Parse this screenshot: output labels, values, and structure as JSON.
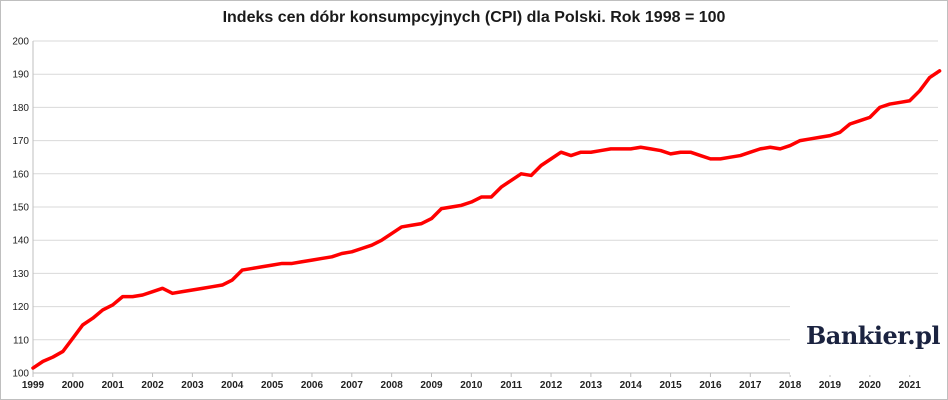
{
  "chart_data": {
    "type": "line",
    "title": "Indeks cen dóbr konsumpcyjnych (CPI) dla Polski. Rok 1998 = 100",
    "xlabel": "",
    "ylabel": "",
    "ylim": [
      100,
      200
    ],
    "yticks": [
      100,
      110,
      120,
      130,
      140,
      150,
      160,
      170,
      180,
      190,
      200
    ],
    "xticks": [
      "1999",
      "2000",
      "2001",
      "2002",
      "2003",
      "2004",
      "2005",
      "2006",
      "2007",
      "2008",
      "2009",
      "2010",
      "2011",
      "2012",
      "2013",
      "2014",
      "2015",
      "2016",
      "2017",
      "2018",
      "2019",
      "2020",
      "2021"
    ],
    "grid": true,
    "series_color": "#ff0000",
    "x": [
      "1999-01",
      "1999-04",
      "1999-07",
      "1999-10",
      "2000-01",
      "2000-04",
      "2000-07",
      "2000-10",
      "2001-01",
      "2001-04",
      "2001-07",
      "2001-10",
      "2002-01",
      "2002-04",
      "2002-07",
      "2002-10",
      "2003-01",
      "2003-04",
      "2003-07",
      "2003-10",
      "2004-01",
      "2004-04",
      "2004-07",
      "2004-10",
      "2005-01",
      "2005-04",
      "2005-07",
      "2005-10",
      "2006-01",
      "2006-04",
      "2006-07",
      "2006-10",
      "2007-01",
      "2007-04",
      "2007-07",
      "2007-10",
      "2008-01",
      "2008-04",
      "2008-07",
      "2008-10",
      "2009-01",
      "2009-04",
      "2009-07",
      "2009-10",
      "2010-01",
      "2010-04",
      "2010-07",
      "2010-10",
      "2011-01",
      "2011-04",
      "2011-07",
      "2011-10",
      "2012-01",
      "2012-04",
      "2012-07",
      "2012-10",
      "2013-01",
      "2013-04",
      "2013-07",
      "2013-10",
      "2014-01",
      "2014-04",
      "2014-07",
      "2014-10",
      "2015-01",
      "2015-04",
      "2015-07",
      "2015-10",
      "2016-01",
      "2016-04",
      "2016-07",
      "2016-10",
      "2017-01",
      "2017-04",
      "2017-07",
      "2017-10",
      "2018-01",
      "2018-04",
      "2018-07",
      "2018-10",
      "2019-01",
      "2019-04",
      "2019-07",
      "2019-10",
      "2020-01",
      "2020-04",
      "2020-07",
      "2020-10",
      "2021-01",
      "2021-04",
      "2021-07",
      "2021-10"
    ],
    "values": [
      101.5,
      103.5,
      104.8,
      106.5,
      110.5,
      114.5,
      116.5,
      119.0,
      120.5,
      123.0,
      123.0,
      123.5,
      124.5,
      125.5,
      124.0,
      124.5,
      125.0,
      125.5,
      126.0,
      126.5,
      128.0,
      131.0,
      131.5,
      132.0,
      132.5,
      133.0,
      133.0,
      133.5,
      134.0,
      134.5,
      135.0,
      136.0,
      136.5,
      137.5,
      138.5,
      140.0,
      142.0,
      144.0,
      144.5,
      145.0,
      146.5,
      149.5,
      150.0,
      150.5,
      151.5,
      153.0,
      153.0,
      156.0,
      158.0,
      160.0,
      159.5,
      162.5,
      164.5,
      166.5,
      165.5,
      166.5,
      166.5,
      167.0,
      167.5,
      167.5,
      167.5,
      168.0,
      167.5,
      167.0,
      166.0,
      166.5,
      166.5,
      165.5,
      164.5,
      164.5,
      165.0,
      165.5,
      166.5,
      167.5,
      168.0,
      167.5,
      168.5,
      170.0,
      170.5,
      171.0,
      171.5,
      172.5,
      175.0,
      176.0,
      177.0,
      180.0,
      181.0,
      181.5,
      182.0,
      185.0,
      189.0,
      191.0
    ]
  },
  "logo": {
    "text": "Bankier.pl"
  }
}
